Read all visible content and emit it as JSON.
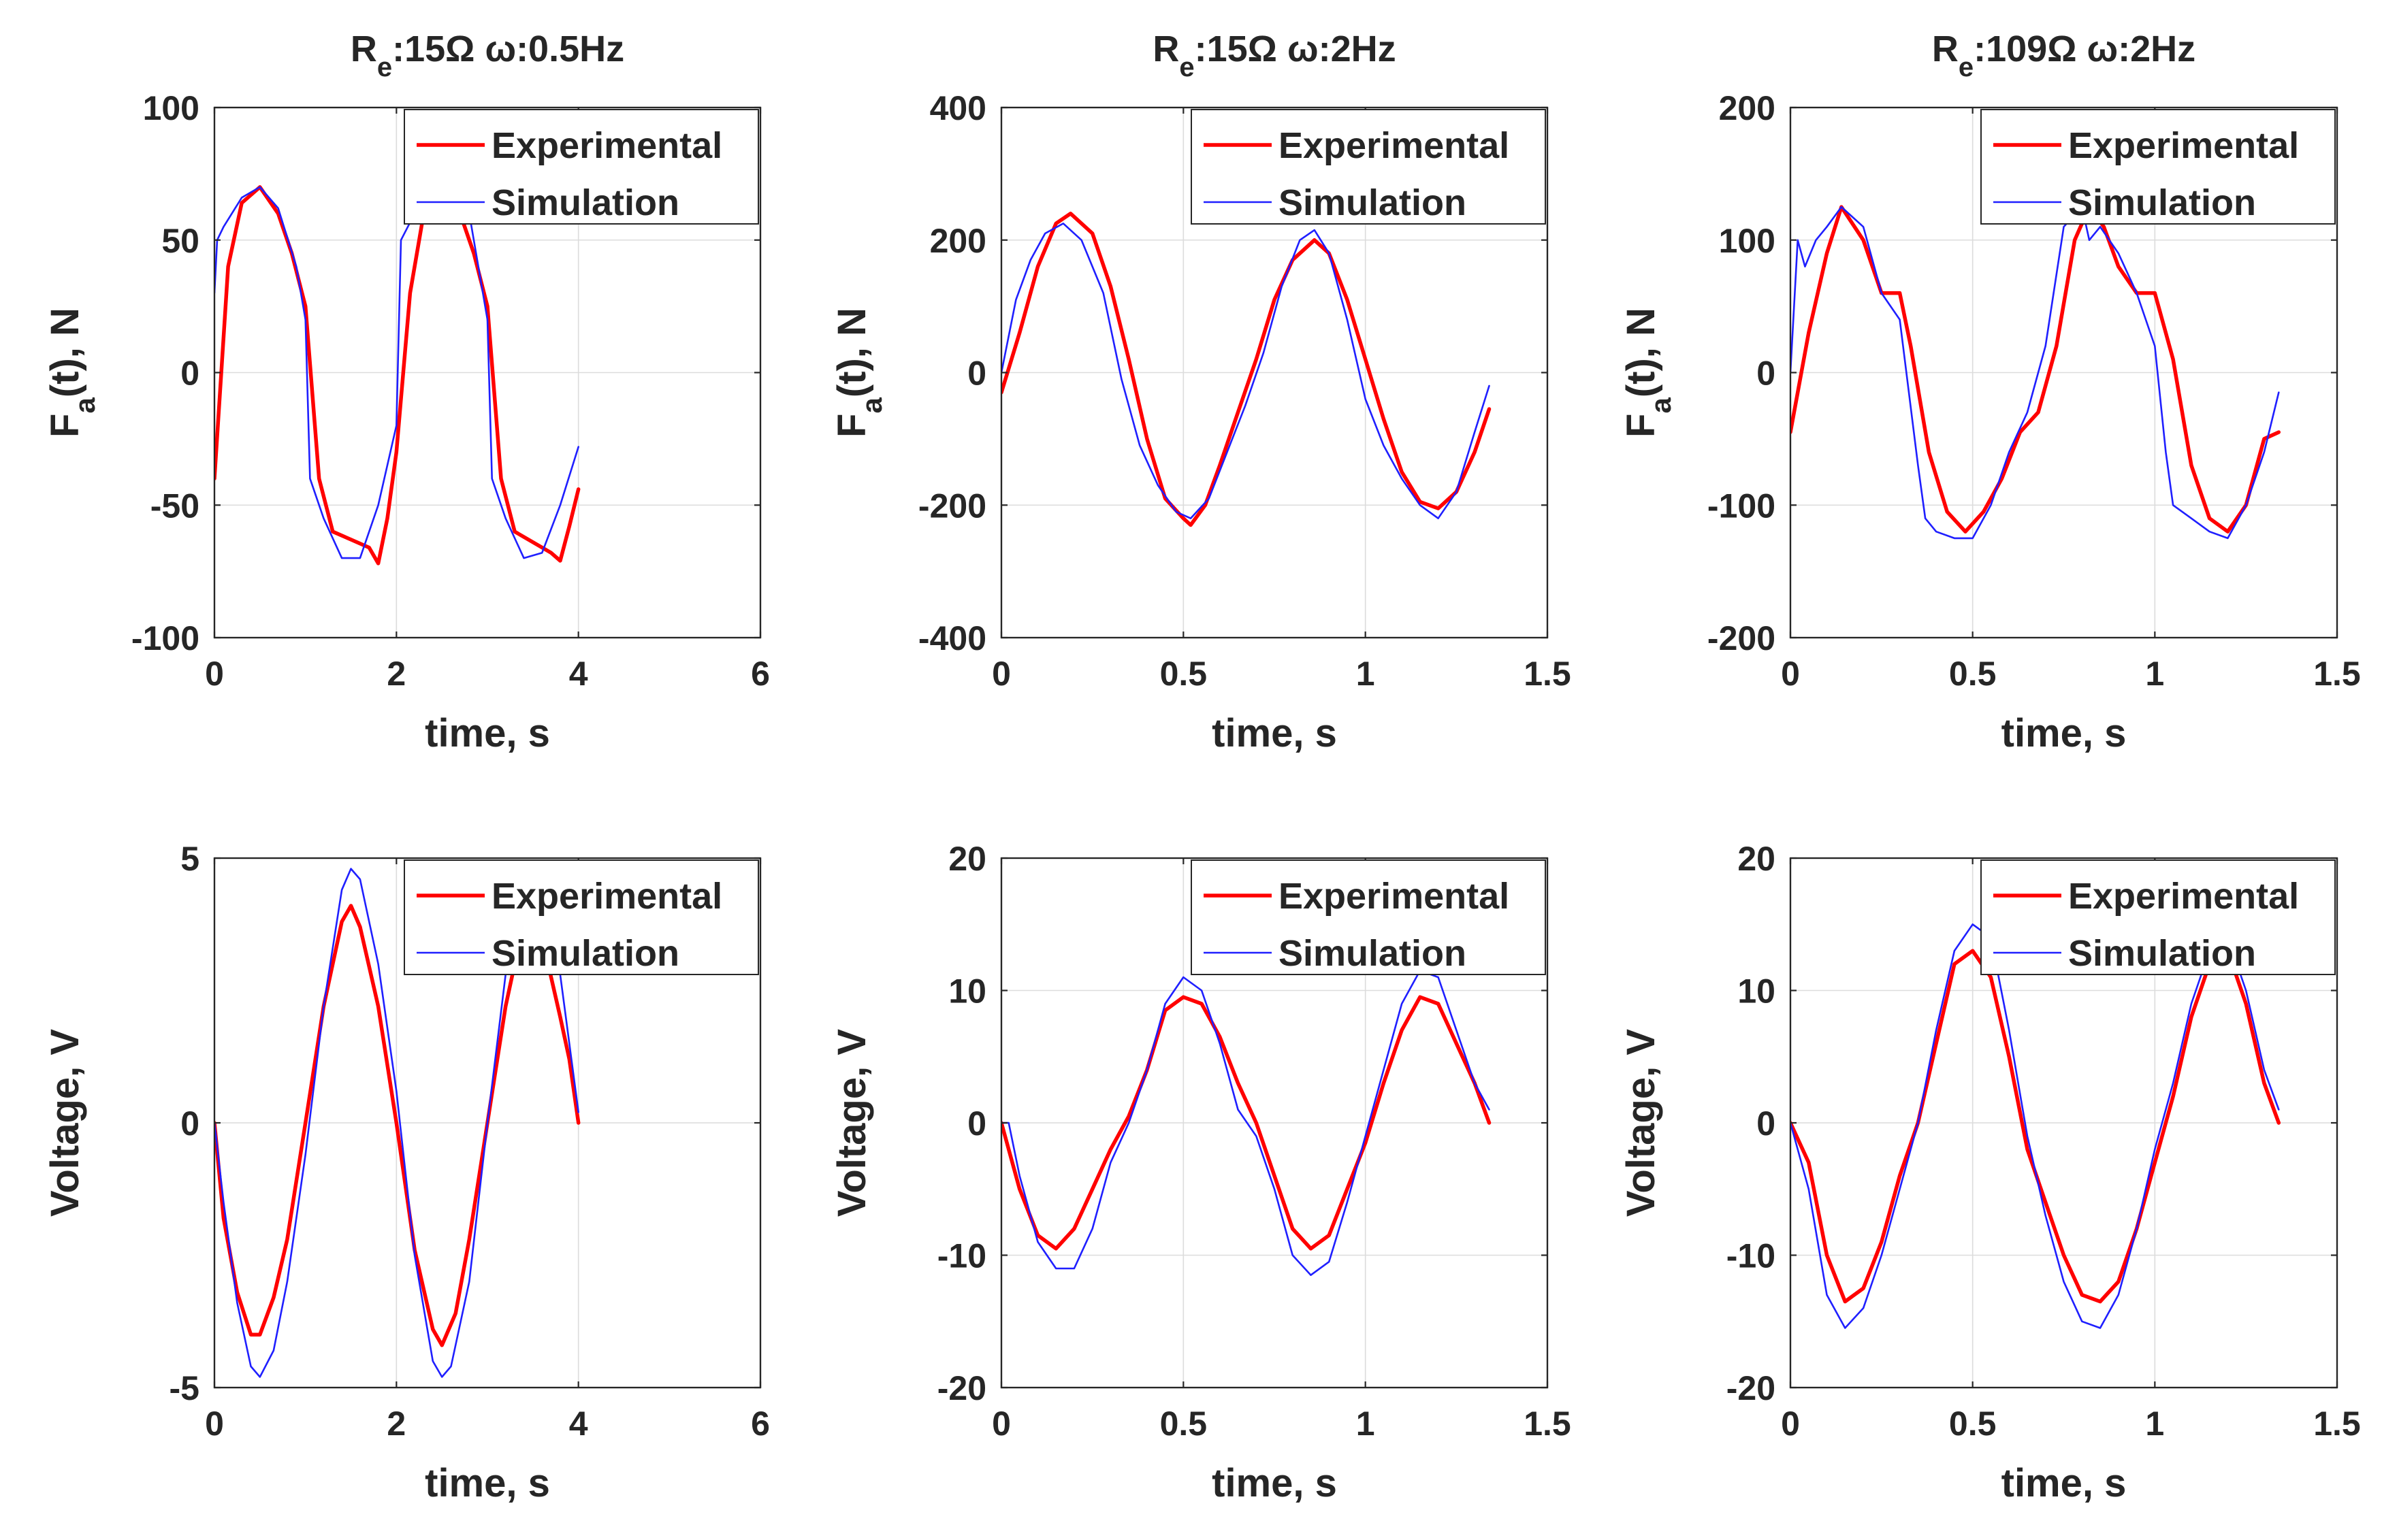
{
  "colors": {
    "experimental": "#ff0000",
    "simulation": "#1f1fff",
    "axis": "#262626",
    "grid": "#dcdcdc"
  },
  "chart_data": [
    {
      "type": "line",
      "title": {
        "main": "R",
        "sub": "e",
        "rest": ":15Ω ω:0.5Hz"
      },
      "xlabel": "time, s",
      "ylabel": {
        "main": "F",
        "sub": "a",
        "rest": "(t), N"
      },
      "xlim": [
        0,
        6
      ],
      "ylim": [
        -100,
        100
      ],
      "xticks": [
        0,
        2,
        4,
        6
      ],
      "yticks": [
        -100,
        -50,
        0,
        50,
        100
      ],
      "xtick_labels": [
        "0",
        "2",
        "4",
        "6"
      ],
      "ytick_labels": [
        "-100",
        "-50",
        "0",
        "50",
        "100"
      ],
      "grid": true,
      "legend": "top-right",
      "series": [
        {
          "name": "Experimental",
          "x": [
            0,
            0.15,
            0.3,
            0.5,
            0.7,
            0.85,
            1.0,
            1.15,
            1.3,
            1.5,
            1.7,
            1.8,
            1.9,
            2.0,
            2.15,
            2.3,
            2.5,
            2.7,
            2.85,
            3.0,
            3.15,
            3.3,
            3.5,
            3.7,
            3.8,
            3.9,
            4.0
          ],
          "y": [
            -40,
            40,
            64,
            70,
            60,
            45,
            25,
            -40,
            -60,
            -63,
            -66,
            -72,
            -55,
            -30,
            30,
            60,
            70,
            60,
            45,
            25,
            -40,
            -60,
            -64,
            -68,
            -71,
            -58,
            -44
          ]
        },
        {
          "name": "Simulation",
          "x": [
            0,
            0.03,
            0.1,
            0.3,
            0.5,
            0.7,
            0.9,
            1.0,
            1.05,
            1.2,
            1.4,
            1.6,
            1.8,
            2.0,
            2.05,
            2.2,
            2.5,
            2.8,
            3.0,
            3.05,
            3.2,
            3.4,
            3.6,
            3.8,
            4.0
          ],
          "y": [
            30,
            50,
            55,
            66,
            70,
            62,
            40,
            20,
            -40,
            -55,
            -70,
            -70,
            -50,
            -20,
            50,
            60,
            70,
            60,
            20,
            -40,
            -55,
            -70,
            -68,
            -50,
            -28
          ]
        }
      ]
    },
    {
      "type": "line",
      "title": {
        "main": "R",
        "sub": "e",
        "rest": ":15Ω ω:2Hz"
      },
      "xlabel": "time, s",
      "ylabel": {
        "main": "F",
        "sub": "a",
        "rest": "(t), N"
      },
      "xlim": [
        0,
        1.5
      ],
      "ylim": [
        -400,
        400
      ],
      "xticks": [
        0,
        0.5,
        1,
        1.5
      ],
      "yticks": [
        -400,
        -200,
        0,
        200,
        400
      ],
      "xtick_labels": [
        "0",
        "0.5",
        "1",
        "1.5"
      ],
      "ytick_labels": [
        "-400",
        "-200",
        "0",
        "200",
        "400"
      ],
      "grid": true,
      "legend": "top-right",
      "series": [
        {
          "name": "Experimental",
          "x": [
            0,
            0.05,
            0.1,
            0.15,
            0.19,
            0.25,
            0.3,
            0.35,
            0.4,
            0.45,
            0.5,
            0.52,
            0.56,
            0.6,
            0.65,
            0.7,
            0.75,
            0.8,
            0.86,
            0.9,
            0.95,
            1.0,
            1.05,
            1.1,
            1.15,
            1.2,
            1.25,
            1.3,
            1.34
          ],
          "y": [
            -30,
            60,
            160,
            225,
            240,
            210,
            130,
            20,
            -100,
            -190,
            -220,
            -230,
            -200,
            -140,
            -60,
            20,
            110,
            170,
            200,
            180,
            110,
            20,
            -70,
            -150,
            -195,
            -205,
            -180,
            -120,
            -55
          ]
        },
        {
          "name": "Simulation",
          "x": [
            0,
            0.04,
            0.08,
            0.12,
            0.17,
            0.22,
            0.28,
            0.33,
            0.38,
            0.43,
            0.48,
            0.52,
            0.57,
            0.62,
            0.67,
            0.72,
            0.77,
            0.82,
            0.86,
            0.9,
            0.95,
            1.0,
            1.05,
            1.1,
            1.15,
            1.2,
            1.25,
            1.3,
            1.34
          ],
          "y": [
            0,
            110,
            170,
            210,
            225,
            200,
            120,
            -10,
            -110,
            -170,
            -210,
            -220,
            -190,
            -120,
            -50,
            30,
            130,
            200,
            215,
            180,
            80,
            -40,
            -110,
            -160,
            -200,
            -220,
            -180,
            -90,
            -20
          ]
        }
      ]
    },
    {
      "type": "line",
      "title": {
        "main": "R",
        "sub": "e",
        "rest": ":109Ω ω:2Hz"
      },
      "xlabel": "time, s",
      "ylabel": {
        "main": "F",
        "sub": "a",
        "rest": "(t), N"
      },
      "xlim": [
        0,
        1.5
      ],
      "ylim": [
        -200,
        200
      ],
      "xticks": [
        0,
        0.5,
        1,
        1.5
      ],
      "yticks": [
        -200,
        -100,
        0,
        100,
        200
      ],
      "xtick_labels": [
        "0",
        "0.5",
        "1",
        "1.5"
      ],
      "ytick_labels": [
        "-200",
        "-100",
        "0",
        "100",
        "200"
      ],
      "grid": true,
      "legend": "top-right",
      "series": [
        {
          "name": "Experimental",
          "x": [
            0,
            0.05,
            0.1,
            0.14,
            0.2,
            0.25,
            0.3,
            0.33,
            0.38,
            0.43,
            0.48,
            0.53,
            0.58,
            0.63,
            0.68,
            0.73,
            0.78,
            0.82,
            0.86,
            0.9,
            0.95,
            1.0,
            1.05,
            1.1,
            1.15,
            1.2,
            1.25,
            1.3,
            1.34
          ],
          "y": [
            -45,
            30,
            90,
            125,
            100,
            60,
            60,
            20,
            -60,
            -105,
            -120,
            -105,
            -80,
            -45,
            -30,
            20,
            100,
            125,
            110,
            80,
            60,
            60,
            10,
            -70,
            -110,
            -120,
            -100,
            -50,
            -45
          ]
        },
        {
          "name": "Simulation",
          "x": [
            0,
            0.02,
            0.04,
            0.07,
            0.1,
            0.14,
            0.2,
            0.25,
            0.3,
            0.35,
            0.37,
            0.4,
            0.45,
            0.5,
            0.55,
            0.6,
            0.65,
            0.7,
            0.75,
            0.8,
            0.82,
            0.85,
            0.9,
            0.95,
            1.0,
            1.03,
            1.05,
            1.1,
            1.15,
            1.2,
            1.25,
            1.3,
            1.34
          ],
          "y": [
            0,
            100,
            80,
            100,
            110,
            125,
            110,
            60,
            40,
            -70,
            -110,
            -120,
            -125,
            -125,
            -100,
            -60,
            -30,
            20,
            110,
            125,
            100,
            110,
            90,
            60,
            20,
            -60,
            -100,
            -110,
            -120,
            -125,
            -100,
            -60,
            -15
          ]
        }
      ]
    },
    {
      "type": "line",
      "title": null,
      "xlabel": "time, s",
      "ylabel": {
        "main": "Voltage, V",
        "sub": "",
        "rest": ""
      },
      "xlim": [
        0,
        6
      ],
      "ylim": [
        -5,
        5
      ],
      "xticks": [
        0,
        2,
        4,
        6
      ],
      "yticks": [
        -5,
        0,
        5
      ],
      "xtick_labels": [
        "0",
        "2",
        "4",
        "6"
      ],
      "ytick_labels": [
        "-5",
        "0",
        "5"
      ],
      "grid": true,
      "legend": "top-right",
      "series": [
        {
          "name": "Experimental",
          "x": [
            0,
            0.1,
            0.25,
            0.4,
            0.5,
            0.65,
            0.8,
            1.0,
            1.2,
            1.4,
            1.5,
            1.6,
            1.8,
            2.0,
            2.2,
            2.4,
            2.5,
            2.65,
            2.8,
            3.0,
            3.2,
            3.4,
            3.5,
            3.6,
            3.8,
            3.9,
            4.0
          ],
          "y": [
            0,
            -1.8,
            -3.2,
            -4.0,
            -4.0,
            -3.3,
            -2.2,
            0,
            2.2,
            3.8,
            4.1,
            3.7,
            2.2,
            0,
            -2.4,
            -3.9,
            -4.2,
            -3.6,
            -2.2,
            0,
            2.2,
            3.8,
            4.0,
            3.5,
            2.0,
            1.2,
            0
          ]
        },
        {
          "name": "Simulation",
          "x": [
            0,
            0.1,
            0.25,
            0.4,
            0.5,
            0.65,
            0.8,
            1.0,
            1.2,
            1.4,
            1.5,
            1.6,
            1.8,
            2.0,
            2.2,
            2.4,
            2.5,
            2.6,
            2.8,
            3.0,
            3.2,
            3.4,
            3.5,
            3.6,
            3.8,
            4.0
          ],
          "y": [
            0,
            -1.5,
            -3.4,
            -4.6,
            -4.8,
            -4.3,
            -3.0,
            -0.6,
            2.2,
            4.4,
            4.8,
            4.6,
            3.0,
            0.6,
            -2.5,
            -4.5,
            -4.8,
            -4.6,
            -3.0,
            0,
            2.8,
            4.6,
            4.8,
            4.5,
            2.8,
            0.2
          ]
        }
      ]
    },
    {
      "type": "line",
      "title": null,
      "xlabel": "time, s",
      "ylabel": {
        "main": "Voltage, V",
        "sub": "",
        "rest": ""
      },
      "xlim": [
        0,
        1.5
      ],
      "ylim": [
        -20,
        20
      ],
      "xticks": [
        0,
        0.5,
        1,
        1.5
      ],
      "yticks": [
        -20,
        -10,
        0,
        10,
        20
      ],
      "xtick_labels": [
        "0",
        "0.5",
        "1",
        "1.5"
      ],
      "ytick_labels": [
        "-20",
        "-10",
        "0",
        "10",
        "20"
      ],
      "grid": true,
      "legend": "top-right",
      "series": [
        {
          "name": "Experimental",
          "x": [
            0,
            0.05,
            0.1,
            0.15,
            0.2,
            0.25,
            0.3,
            0.35,
            0.4,
            0.45,
            0.5,
            0.55,
            0.6,
            0.65,
            0.7,
            0.75,
            0.8,
            0.85,
            0.9,
            0.95,
            1.0,
            1.05,
            1.1,
            1.15,
            1.2,
            1.25,
            1.3,
            1.34
          ],
          "y": [
            0,
            -5,
            -8.5,
            -9.5,
            -8,
            -5,
            -2,
            0.5,
            4,
            8.5,
            9.5,
            9,
            6.5,
            3,
            0,
            -4,
            -8,
            -9.5,
            -8.5,
            -5,
            -1.5,
            3,
            7,
            9.5,
            9,
            6,
            3,
            0
          ]
        },
        {
          "name": "Simulation",
          "x": [
            0,
            0.02,
            0.05,
            0.1,
            0.15,
            0.2,
            0.25,
            0.3,
            0.35,
            0.4,
            0.45,
            0.5,
            0.55,
            0.6,
            0.65,
            0.7,
            0.75,
            0.8,
            0.85,
            0.9,
            0.95,
            1.0,
            1.05,
            1.1,
            1.15,
            1.2,
            1.25,
            1.3,
            1.34
          ],
          "y": [
            0,
            0,
            -4,
            -9,
            -11,
            -11,
            -8,
            -3,
            0,
            4,
            9,
            11,
            10,
            6,
            1,
            -1,
            -5,
            -10,
            -11.5,
            -10.5,
            -6,
            -1,
            4,
            9,
            11.5,
            11,
            7,
            3,
            1
          ]
        }
      ]
    },
    {
      "type": "line",
      "title": null,
      "xlabel": "time, s",
      "ylabel": {
        "main": "Voltage, V",
        "sub": "",
        "rest": ""
      },
      "xlim": [
        0,
        1.5
      ],
      "ylim": [
        -20,
        20
      ],
      "xticks": [
        0,
        0.5,
        1,
        1.5
      ],
      "yticks": [
        -20,
        -10,
        0,
        10,
        20
      ],
      "xtick_labels": [
        "0",
        "0.5",
        "1",
        "1.5"
      ],
      "ytick_labels": [
        "-20",
        "-10",
        "0",
        "10",
        "20"
      ],
      "grid": true,
      "legend": "top-right",
      "series": [
        {
          "name": "Experimental",
          "x": [
            0,
            0.05,
            0.1,
            0.15,
            0.2,
            0.25,
            0.3,
            0.35,
            0.4,
            0.45,
            0.5,
            0.55,
            0.6,
            0.65,
            0.7,
            0.75,
            0.8,
            0.85,
            0.9,
            0.95,
            1.0,
            1.05,
            1.1,
            1.15,
            1.2,
            1.25,
            1.3,
            1.34
          ],
          "y": [
            0,
            -3,
            -10,
            -13.5,
            -12.5,
            -9,
            -4,
            0,
            6,
            12,
            13,
            11,
            5,
            -2,
            -6,
            -10,
            -13,
            -13.5,
            -12,
            -8,
            -3,
            2,
            8,
            12,
            13,
            9,
            3,
            0
          ]
        },
        {
          "name": "Simulation",
          "x": [
            0,
            0.05,
            0.1,
            0.15,
            0.2,
            0.25,
            0.3,
            0.35,
            0.4,
            0.45,
            0.5,
            0.55,
            0.6,
            0.65,
            0.7,
            0.75,
            0.8,
            0.85,
            0.9,
            0.95,
            1.0,
            1.05,
            1.1,
            1.15,
            1.2,
            1.25,
            1.3,
            1.34
          ],
          "y": [
            0,
            -5,
            -13,
            -15.5,
            -14,
            -10,
            -5,
            0,
            7,
            13,
            15,
            14,
            7,
            -1,
            -7,
            -12,
            -15,
            -15.5,
            -13,
            -8,
            -2,
            3,
            9,
            13,
            14,
            10,
            4,
            1
          ]
        }
      ]
    }
  ]
}
